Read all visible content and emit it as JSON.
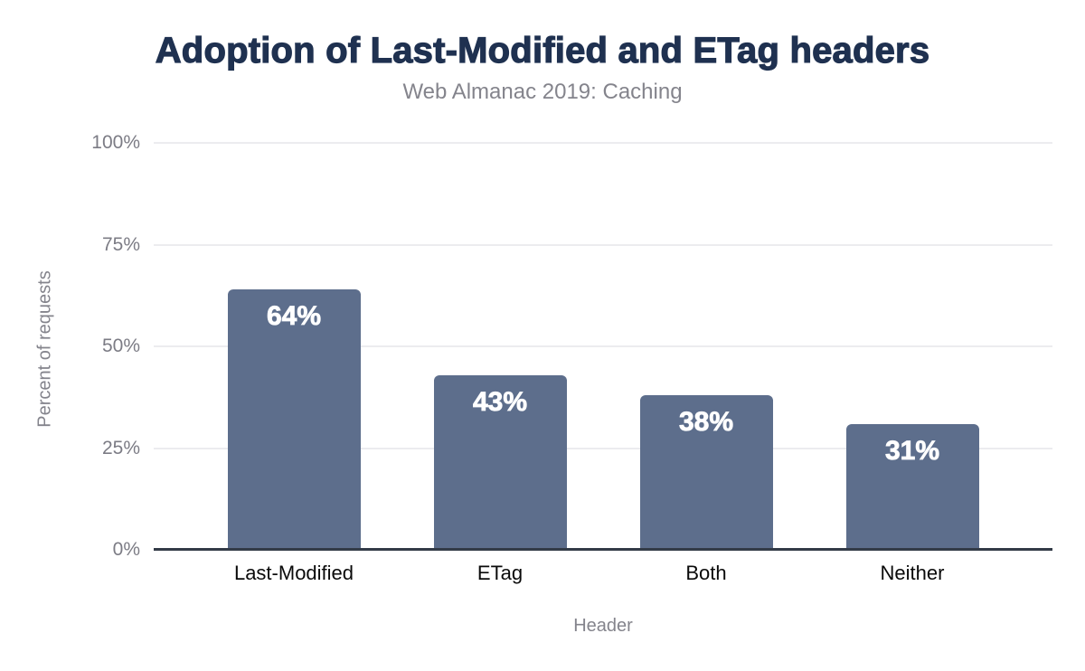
{
  "chart_data": {
    "type": "bar",
    "title": "Adoption of Last-Modified and ETag headers",
    "subtitle": "Web Almanac 2019: Caching",
    "categories": [
      "Last-Modified",
      "ETag",
      "Both",
      "Neither"
    ],
    "values": [
      64,
      43,
      38,
      31
    ],
    "value_labels": [
      "64%",
      "43%",
      "38%",
      "31%"
    ],
    "xlabel": "Header",
    "ylabel": "Percent of requests",
    "ylim": [
      0,
      100
    ],
    "yticks": [
      0,
      25,
      50,
      75,
      100
    ],
    "ytick_labels": [
      "0%",
      "25%",
      "50%",
      "75%",
      "100%"
    ],
    "grid": true,
    "legend": "none"
  },
  "colors": {
    "bar": "#5d6e8c",
    "title": "#1f3150",
    "muted_text": "#84848c",
    "tick_text": "#7c7c85",
    "gridline": "#ececef",
    "axis_line": "#333b47",
    "bar_label_text": "#ffffff",
    "background": "#ffffff"
  }
}
